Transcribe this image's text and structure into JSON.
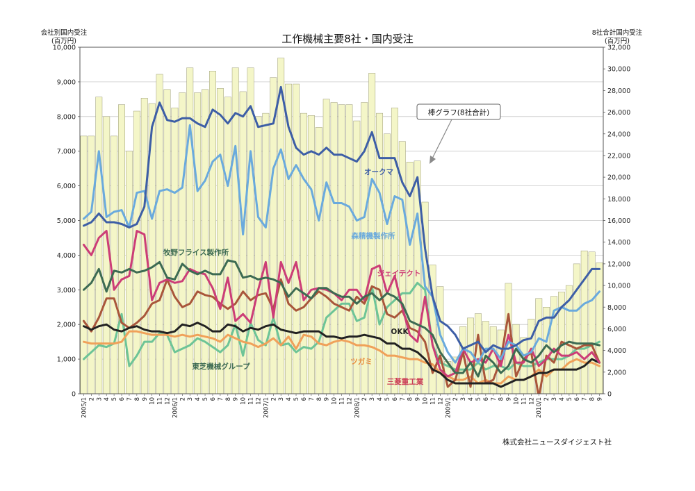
{
  "chart_data": {
    "type": "bar+line",
    "title": "工作機械主要8社・国内受注",
    "left_axis": {
      "label_line1": "会社別国内受注",
      "label_line2": "(百万円)",
      "ylim": [
        0,
        10000
      ],
      "ticks": [
        "0",
        "1,000",
        "2,000",
        "3,000",
        "4,000",
        "5,000",
        "6,000",
        "7,000",
        "8,000",
        "9,000",
        "10,000"
      ]
    },
    "right_axis": {
      "label_line1": "8社合計国内受注",
      "label_line2": "(百万円)",
      "ylim": [
        0,
        32000
      ],
      "ticks": [
        "0",
        "2,000",
        "4,000",
        "6,000",
        "8,000",
        "10,000",
        "12,000",
        "14,000",
        "16,000",
        "18,000",
        "20,000",
        "22,000",
        "24,000",
        "26,000",
        "28,000",
        "30,000",
        "32,000"
      ]
    },
    "x_labels": [
      "2005/1",
      "2",
      "3",
      "4",
      "5",
      "6",
      "7",
      "8",
      "9",
      "10",
      "11",
      "12",
      "2006/1",
      "2",
      "3",
      "4",
      "5",
      "6",
      "7",
      "8",
      "9",
      "10",
      "11",
      "12",
      "2007/1",
      "2",
      "3",
      "4",
      "5",
      "6",
      "7",
      "8",
      "9",
      "10",
      "11",
      "12",
      "2008/1",
      "2",
      "3",
      "4",
      "5",
      "6",
      "7",
      "8",
      "9",
      "10",
      "11",
      "12",
      "2009/1",
      "2",
      "3",
      "4",
      "5",
      "6",
      "7",
      "8",
      "9",
      "10",
      "11",
      "12",
      "2010/1",
      "2",
      "3",
      "4",
      "5",
      "6",
      "7",
      "8",
      "9"
    ],
    "grid": "horizontal",
    "bar_series": {
      "name": "棒グラフ(8社合計)",
      "axis": "right",
      "color": "#f4f6c8",
      "values": [
        23800,
        23800,
        27400,
        25600,
        23800,
        26700,
        22400,
        26100,
        27300,
        26800,
        29500,
        28100,
        26400,
        27800,
        30100,
        27800,
        28100,
        29800,
        28200,
        27400,
        30100,
        27900,
        30100,
        25600,
        25900,
        29200,
        31000,
        28600,
        28600,
        25900,
        25700,
        24600,
        27200,
        26900,
        26700,
        26700,
        25200,
        26900,
        29600,
        25900,
        24000,
        26400,
        23300,
        21400,
        21500,
        17700,
        11900,
        9900,
        3000,
        3400,
        6200,
        7000,
        7400,
        6700,
        6200,
        5900,
        10200,
        6400,
        5200,
        6900,
        8800,
        8000,
        9000,
        9400,
        10000,
        12000,
        13200,
        13100,
        12100
      ]
    },
    "line_series": [
      {
        "name": "オークマ",
        "color": "#3d5ea6",
        "label_color": "#3d5ea6",
        "values": [
          4850,
          4950,
          5200,
          4950,
          4950,
          4900,
          4800,
          4900,
          5400,
          7700,
          8400,
          7900,
          7850,
          7950,
          7950,
          7800,
          7700,
          8200,
          8050,
          7800,
          8100,
          8000,
          8300,
          7700,
          7750,
          7800,
          8850,
          7700,
          7100,
          6900,
          7000,
          6900,
          7100,
          6900,
          6900,
          6800,
          6700,
          7000,
          7550,
          6800,
          6800,
          6800,
          6100,
          5700,
          6250,
          4200,
          2800,
          2100,
          1950,
          1700,
          1300,
          1400,
          1500,
          1200,
          1400,
          1300,
          1300,
          1400,
          1550,
          1600,
          2100,
          2200,
          2200,
          2500,
          2700,
          3000,
          3300,
          3600,
          3600
        ]
      },
      {
        "name": "森精機製作所",
        "color": "#6aaadd",
        "label_color": "#6aaadd",
        "values": [
          5050,
          5250,
          7000,
          5100,
          5250,
          5300,
          4800,
          5800,
          5850,
          5050,
          5850,
          5900,
          5800,
          5950,
          7750,
          5850,
          6150,
          6700,
          6900,
          6000,
          7150,
          4600,
          7000,
          5100,
          4800,
          6500,
          7050,
          6200,
          6600,
          6200,
          5900,
          5000,
          6100,
          5500,
          5500,
          5400,
          5000,
          5100,
          6200,
          5800,
          4900,
          5700,
          5600,
          4300,
          5200,
          3100,
          2800,
          1700,
          1200,
          900,
          1300,
          1200,
          900,
          1300,
          1300,
          1000,
          1500,
          1400,
          1100,
          1200,
          1600,
          1500,
          2400,
          2500,
          2400,
          2400,
          2600,
          2700,
          2950
        ]
      },
      {
        "name": "牧野フライス製作所",
        "color": "#3d6b53",
        "label_color": "#3d6b53",
        "values": [
          3000,
          3200,
          3600,
          2950,
          3550,
          3500,
          3600,
          3500,
          3550,
          3650,
          3800,
          3350,
          3300,
          3750,
          3550,
          3450,
          3550,
          3450,
          3450,
          3850,
          3800,
          3350,
          3400,
          3300,
          3350,
          3300,
          3200,
          2800,
          3050,
          2900,
          2750,
          3050,
          3050,
          2900,
          2800,
          2800,
          2600,
          2800,
          2900,
          2700,
          2900,
          2800,
          2600,
          2100,
          2000,
          1900,
          1700,
          1200,
          900,
          600,
          600,
          900,
          500,
          1100,
          900,
          600,
          800,
          1300,
          1000,
          900,
          1100,
          1400,
          1200,
          1400,
          1500,
          1450,
          1450,
          1450,
          1400
        ]
      },
      {
        "name": "ジェイテクト",
        "color": "#cc3d77",
        "label_color": "#cc3d77",
        "values": [
          4300,
          4000,
          4500,
          4700,
          3000,
          3300,
          3400,
          4700,
          4600,
          2700,
          3200,
          3300,
          3200,
          3250,
          3600,
          3500,
          3450,
          3050,
          2450,
          3350,
          2100,
          2300,
          2050,
          3000,
          3800,
          2200,
          3800,
          3200,
          3800,
          2700,
          3000,
          3050,
          3000,
          2900,
          2700,
          3000,
          3000,
          2700,
          3600,
          3700,
          2900,
          3400,
          2500,
          1700,
          1500,
          2800,
          1400,
          700,
          500,
          600,
          1300,
          900,
          1000,
          900,
          1300,
          800,
          1700,
          900,
          900,
          1300,
          800,
          1000,
          1300,
          1100,
          1100,
          1200,
          1000,
          1200,
          900
        ]
      },
      {
        "name": "東芝機械グループ",
        "color": "#6dc497",
        "label_color": "#3d6b53",
        "values": [
          1000,
          1200,
          1400,
          1350,
          1450,
          2300,
          800,
          1100,
          1500,
          1500,
          1750,
          1700,
          1200,
          1300,
          1400,
          1600,
          1500,
          1350,
          1200,
          1400,
          2000,
          1100,
          2050,
          1550,
          1400,
          2200,
          1400,
          1450,
          1200,
          1350,
          1300,
          1500,
          2200,
          2400,
          2600,
          2600,
          2100,
          2200,
          3100,
          2000,
          2500,
          2700,
          2900,
          2900,
          3200,
          3000,
          1400,
          900,
          800,
          700,
          700,
          700,
          900,
          700,
          800,
          800,
          700,
          900,
          800,
          800,
          900,
          1000,
          1000,
          1000,
          1100,
          1300,
          1300,
          1400,
          1500
        ]
      },
      {
        "name": "OKK",
        "color": "#222222",
        "label_color": "#222222",
        "values": [
          1950,
          1850,
          1950,
          2000,
          1850,
          1800,
          1900,
          1950,
          1850,
          1800,
          1800,
          1750,
          1800,
          2000,
          1950,
          2050,
          1950,
          1800,
          1800,
          2000,
          1950,
          1800,
          1900,
          1850,
          1950,
          2000,
          1850,
          1800,
          1750,
          1800,
          1800,
          1800,
          1650,
          1650,
          1600,
          1650,
          1650,
          1700,
          1650,
          1600,
          1450,
          1450,
          1300,
          1300,
          1200,
          1000,
          700,
          600,
          400,
          300,
          300,
          300,
          300,
          300,
          300,
          200,
          300,
          400,
          400,
          500,
          600,
          600,
          700,
          700,
          700,
          700,
          800,
          1000,
          900
        ]
      },
      {
        "name": "ツガミ",
        "color": "#f0a15a",
        "label_color": "#e98c3a",
        "values": [
          1500,
          1450,
          1450,
          1450,
          1450,
          1500,
          1800,
          1800,
          1750,
          1700,
          1700,
          1700,
          1650,
          1700,
          1650,
          1700,
          1650,
          1600,
          1500,
          1700,
          1600,
          1500,
          1450,
          1350,
          1450,
          1600,
          1400,
          1650,
          1300,
          1700,
          1650,
          1450,
          1400,
          1500,
          1550,
          1500,
          1400,
          1400,
          1350,
          1250,
          1100,
          1100,
          1050,
          1000,
          1000,
          900,
          850,
          600,
          500,
          400,
          400,
          500,
          300,
          400,
          300,
          300,
          500,
          400,
          400,
          500,
          700,
          500,
          700,
          700,
          900,
          1000,
          900,
          900,
          800
        ]
      },
      {
        "name": "三菱重工業",
        "color": "#a9563b",
        "label_color": "#cc3d55",
        "values": [
          2100,
          1800,
          2200,
          2750,
          2750,
          2050,
          1900,
          2050,
          2250,
          2600,
          2700,
          3300,
          2800,
          2500,
          2600,
          2950,
          2850,
          2800,
          2600,
          2450,
          2600,
          2950,
          2700,
          2850,
          2900,
          2450,
          3300,
          2600,
          2400,
          2500,
          2750,
          2950,
          2800,
          2600,
          2500,
          2400,
          2800,
          2600,
          3100,
          3000,
          2300,
          2200,
          2400,
          1900,
          1800,
          1500,
          600,
          1100,
          200,
          400,
          1200,
          200,
          1700,
          300,
          400,
          1000,
          2300,
          500,
          1000,
          1200,
          -100,
          1100,
          900,
          1500,
          1400,
          1300,
          1400,
          1400,
          900
        ]
      }
    ],
    "annotations": [
      {
        "text": "オークマ",
        "series": "オークマ"
      },
      {
        "text": "森精機製作所",
        "series": "森精機製作所"
      },
      {
        "text": "牧野フライス製作所",
        "series": "牧野フライス製作所"
      },
      {
        "text": "ジェイテクト",
        "series": "ジェイテクト"
      },
      {
        "text": "東芝機械グループ",
        "series": "東芝機械グループ"
      },
      {
        "text": "OKK",
        "series": "OKK"
      },
      {
        "text": "ツガミ",
        "series": "ツガミ"
      },
      {
        "text": "三菱重工業",
        "series": "三菱重工業"
      }
    ],
    "callout": {
      "text": "棒グラフ(8社合計)"
    }
  },
  "footer": {
    "publisher": "株式会社ニュースダイジェスト社"
  }
}
